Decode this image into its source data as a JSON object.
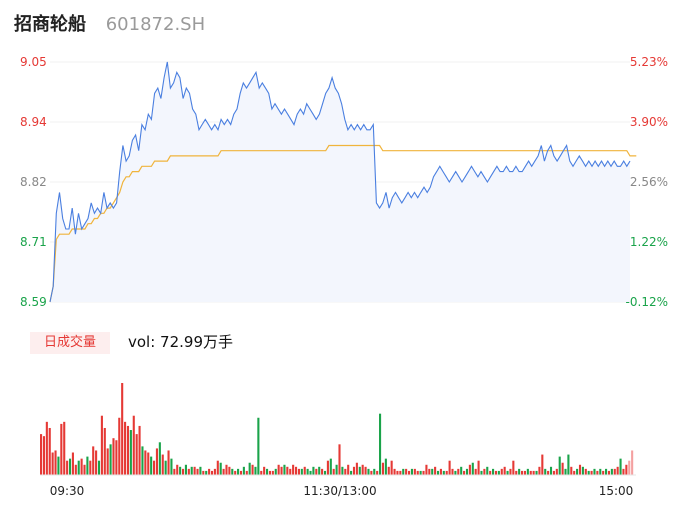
{
  "header": {
    "name": "招商轮船",
    "code": "601872.SH"
  },
  "volume_panel": {
    "tab_label": "日成交量",
    "vol_text": "vol: 72.99万手"
  },
  "colors": {
    "price_line": "#4a7fe0",
    "avg_line": "#f0b43c",
    "up": "#e53935",
    "down": "#1aa34a",
    "neutral": "#888888",
    "area_fill": "#f3f6fd"
  },
  "chart_data": {
    "type": "line",
    "price_axis": {
      "ticks": [
        "9.05",
        "8.94",
        "8.82",
        "8.71",
        "8.59"
      ],
      "ylim": [
        8.59,
        9.05
      ]
    },
    "pct_axis": {
      "ticks": [
        "5.23%",
        "3.90%",
        "2.56%",
        "1.22%",
        "-0.12%"
      ]
    },
    "time_labels": [
      "09:30",
      "11:30/13:00",
      "15:00"
    ],
    "series": [
      {
        "values": [
          8.59,
          8.62,
          8.76,
          8.8,
          8.75,
          8.73,
          8.73,
          8.77,
          8.72,
          8.76,
          8.73,
          8.74,
          8.75,
          8.78,
          8.76,
          8.77,
          8.76,
          8.8,
          8.77,
          8.78,
          8.77,
          8.78,
          8.84,
          8.89,
          8.86,
          8.87,
          8.9,
          8.91,
          8.88,
          8.93,
          8.92,
          8.95,
          8.94,
          8.99,
          9.0,
          8.98,
          9.02,
          9.05,
          9.0,
          9.01,
          9.03,
          9.02,
          8.98,
          9.0,
          8.99,
          8.96,
          8.95,
          8.92,
          8.93,
          8.94,
          8.93,
          8.92,
          8.93,
          8.92,
          8.94,
          8.93,
          8.94,
          8.93,
          8.95,
          8.96,
          8.99,
          9.01,
          9.0,
          9.01,
          9.02,
          9.03,
          9.0,
          9.01,
          9.0,
          8.99,
          8.96,
          8.97,
          8.96,
          8.95,
          8.96,
          8.95,
          8.94,
          8.93,
          8.95,
          8.96,
          8.95,
          8.97,
          8.96,
          8.95,
          8.94,
          8.95,
          8.97,
          8.99,
          9.0,
          9.02,
          9.0,
          8.99,
          8.97,
          8.94,
          8.92,
          8.93,
          8.92,
          8.93,
          8.92,
          8.93,
          8.92,
          8.92,
          8.93,
          8.78,
          8.77,
          8.78,
          8.8,
          8.77,
          8.79,
          8.8,
          8.79,
          8.78,
          8.79,
          8.8,
          8.79,
          8.8,
          8.79,
          8.8,
          8.81,
          8.8,
          8.81,
          8.83,
          8.84,
          8.85,
          8.84,
          8.83,
          8.82,
          8.83,
          8.84,
          8.83,
          8.82,
          8.83,
          8.84,
          8.85,
          8.84,
          8.83,
          8.84,
          8.83,
          8.82,
          8.83,
          8.84,
          8.85,
          8.84,
          8.84,
          8.85,
          8.84,
          8.84,
          8.85,
          8.84,
          8.84,
          8.85,
          8.86,
          8.85,
          8.86,
          8.87,
          8.89,
          8.86,
          8.88,
          8.89,
          8.87,
          8.86,
          8.87,
          8.88,
          8.89,
          8.86,
          8.85,
          8.86,
          8.87,
          8.86,
          8.85,
          8.86,
          8.85,
          8.86,
          8.85,
          8.86,
          8.85,
          8.86,
          8.85,
          8.86,
          8.85,
          8.85,
          8.86,
          8.85,
          8.86
        ],
        "avg": [
          8.59,
          8.62,
          8.71,
          8.72,
          8.72,
          8.72,
          8.72,
          8.73,
          8.73,
          8.73,
          8.73,
          8.73,
          8.74,
          8.74,
          8.75,
          8.75,
          8.76,
          8.76,
          8.77,
          8.77,
          8.78,
          8.79,
          8.8,
          8.82,
          8.83,
          8.83,
          8.84,
          8.84,
          8.84,
          8.85,
          8.85,
          8.85,
          8.85,
          8.86,
          8.86,
          8.86,
          8.86,
          8.86,
          8.87,
          8.87,
          8.87,
          8.87,
          8.87,
          8.87,
          8.87,
          8.87,
          8.87,
          8.87,
          8.87,
          8.87,
          8.87,
          8.87,
          8.87,
          8.87,
          8.88,
          8.88,
          8.88,
          8.88,
          8.88,
          8.88,
          8.88,
          8.88,
          8.88,
          8.88,
          8.88,
          8.88,
          8.88,
          8.88,
          8.88,
          8.88,
          8.88,
          8.88,
          8.88,
          8.88,
          8.88,
          8.88,
          8.88,
          8.88,
          8.88,
          8.88,
          8.88,
          8.88,
          8.88,
          8.88,
          8.88,
          8.88,
          8.88,
          8.88,
          8.89,
          8.89,
          8.89,
          8.89,
          8.89,
          8.89,
          8.89,
          8.89,
          8.89,
          8.89,
          8.89,
          8.89,
          8.89,
          8.89,
          8.89,
          8.89,
          8.89,
          8.88,
          8.88,
          8.88,
          8.88,
          8.88,
          8.88,
          8.88,
          8.88,
          8.88,
          8.88,
          8.88,
          8.88,
          8.88,
          8.88,
          8.88,
          8.88,
          8.88,
          8.88,
          8.88,
          8.88,
          8.88,
          8.88,
          8.88,
          8.88,
          8.88,
          8.88,
          8.88,
          8.88,
          8.88,
          8.88,
          8.88,
          8.88,
          8.88,
          8.88,
          8.88,
          8.88,
          8.88,
          8.88,
          8.88,
          8.88,
          8.88,
          8.88,
          8.88,
          8.88,
          8.88,
          8.88,
          8.88,
          8.88,
          8.88,
          8.88,
          8.88,
          8.88,
          8.88,
          8.88,
          8.88,
          8.88,
          8.88,
          8.88,
          8.88,
          8.88,
          8.88,
          8.88,
          8.88,
          8.88,
          8.88,
          8.88,
          8.88,
          8.88,
          8.88,
          8.88,
          8.88,
          8.88,
          8.88,
          8.88,
          8.88,
          8.88,
          8.88,
          8.88,
          8.87,
          8.87,
          8.87
        ]
      }
    ],
    "volume": [
      40,
      38,
      52,
      46,
      22,
      24,
      18,
      50,
      52,
      14,
      16,
      22,
      10,
      14,
      16,
      10,
      18,
      14,
      28,
      24,
      14,
      58,
      46,
      26,
      30,
      36,
      34,
      56,
      90,
      52,
      48,
      44,
      58,
      40,
      48,
      28,
      24,
      22,
      18,
      14,
      26,
      32,
      20,
      14,
      24,
      16,
      6,
      10,
      8,
      6,
      10,
      6,
      8,
      8,
      6,
      8,
      4,
      4,
      6,
      4,
      6,
      14,
      12,
      6,
      10,
      8,
      6,
      4,
      6,
      4,
      8,
      4,
      12,
      10,
      8,
      56,
      4,
      8,
      6,
      4,
      4,
      6,
      10,
      8,
      10,
      8,
      6,
      10,
      8,
      6,
      6,
      8,
      6,
      4,
      8,
      6,
      8,
      6,
      4,
      14,
      16,
      6,
      10,
      30,
      8,
      6,
      10,
      4,
      8,
      12,
      8,
      10,
      8,
      6,
      4,
      6,
      4,
      60,
      12,
      16,
      8,
      14,
      6,
      4,
      4,
      6,
      6,
      4,
      6,
      6,
      4,
      4,
      4,
      10,
      6,
      6,
      8,
      4,
      6,
      4,
      4,
      14,
      6,
      4,
      6,
      8,
      4,
      6,
      10,
      12,
      6,
      14,
      4,
      6,
      8,
      4,
      6,
      4,
      4,
      6,
      8,
      4,
      6,
      14,
      4,
      6,
      4,
      4,
      6,
      4,
      4,
      4,
      8,
      20,
      6,
      4,
      8,
      4,
      6,
      18,
      12,
      6,
      20,
      8,
      4,
      6,
      10,
      8,
      6,
      4,
      4,
      6,
      4,
      6,
      4,
      6,
      4,
      6,
      6,
      8,
      16,
      6,
      10,
      14,
      24
    ],
    "volume_dir": [
      "u",
      "u",
      "u",
      "u",
      "u",
      "u",
      "d",
      "u",
      "u",
      "u",
      "d",
      "u",
      "u",
      "d",
      "u",
      "u",
      "d",
      "u",
      "u",
      "u",
      "d",
      "u",
      "u",
      "u",
      "d",
      "u",
      "u",
      "u",
      "u",
      "u",
      "u",
      "d",
      "u",
      "u",
      "u",
      "d",
      "u",
      "u",
      "d",
      "u",
      "u",
      "d",
      "u",
      "d",
      "u",
      "d",
      "u",
      "u",
      "d",
      "u",
      "d",
      "u",
      "d",
      "u",
      "u",
      "d",
      "u",
      "d",
      "u",
      "u",
      "u",
      "u",
      "d",
      "u",
      "u",
      "u",
      "d",
      "u",
      "d",
      "u",
      "d",
      "u",
      "d",
      "u",
      "d",
      "d",
      "u",
      "u",
      "d",
      "u",
      "u",
      "d",
      "u",
      "u",
      "d",
      "u",
      "u",
      "u",
      "u",
      "u",
      "d",
      "u",
      "d",
      "d",
      "d",
      "u",
      "d",
      "u",
      "d",
      "u",
      "d",
      "u",
      "d",
      "u",
      "d",
      "u",
      "u",
      "d",
      "u",
      "u",
      "d",
      "u",
      "u",
      "d",
      "u",
      "d",
      "u",
      "d",
      "u",
      "d",
      "u",
      "u",
      "u",
      "u",
      "u",
      "d",
      "u",
      "u",
      "d",
      "u",
      "u",
      "d",
      "u",
      "u",
      "u",
      "d",
      "u",
      "d",
      "u",
      "d",
      "u",
      "u",
      "u",
      "d",
      "u",
      "d",
      "u",
      "d",
      "u",
      "d",
      "u",
      "u",
      "d",
      "u",
      "d",
      "u",
      "d",
      "u",
      "d",
      "u",
      "u",
      "d",
      "u",
      "u",
      "u",
      "d",
      "u",
      "u",
      "d",
      "u",
      "u",
      "d",
      "u",
      "u",
      "d",
      "u",
      "d",
      "u",
      "u",
      "d",
      "u",
      "d",
      "d",
      "u",
      "u",
      "d",
      "u",
      "d",
      "u",
      "d",
      "u",
      "d",
      "u",
      "d",
      "u",
      "d",
      "u",
      "d",
      "u",
      "u",
      "d",
      "u",
      "u",
      "n"
    ]
  }
}
